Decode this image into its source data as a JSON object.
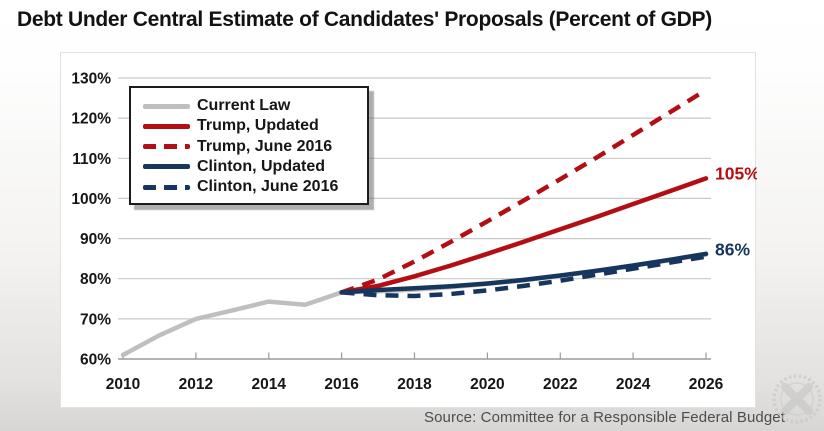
{
  "title": "Debt Under Central Estimate of Candidates' Proposals (Percent of GDP)",
  "source": "Source: Committee for a Responsible Federal Budget",
  "colors": {
    "red": "#b30e14",
    "navy": "#17365d",
    "gray": "#bfbfbf",
    "grid": "#c9c9c9",
    "axis": "#9b9b9b",
    "tick_label": "#161616",
    "source_text": "#4d4d4d"
  },
  "annotations": [
    {
      "text": "105%",
      "color": "red",
      "year": 2026,
      "value": 105
    },
    {
      "text": "86%",
      "color": "navy",
      "year": 2026,
      "value": 86
    }
  ],
  "chart_data": {
    "type": "line",
    "title": "Debt Under Central Estimate of Candidates' Proposals (Percent of GDP)",
    "xlabel": "",
    "ylabel": "Percent of GDP",
    "x": [
      2010,
      2011,
      2012,
      2013,
      2014,
      2015,
      2016,
      2017,
      2018,
      2019,
      2020,
      2021,
      2022,
      2023,
      2024,
      2025,
      2026
    ],
    "x_ticks": [
      2010,
      2012,
      2014,
      2016,
      2018,
      2020,
      2022,
      2024,
      2026
    ],
    "ylim": [
      60,
      130
    ],
    "y_ticks": [
      60,
      70,
      80,
      90,
      100,
      110,
      120,
      130
    ],
    "y_tick_suffix": "%",
    "grid": true,
    "legend_position": "top-left",
    "series": [
      {
        "name": "Current Law",
        "color": "gray",
        "style": "solid",
        "width": 4.5,
        "values": [
          61,
          65.9,
          70,
          72.1,
          74.3,
          73.5,
          76.6,
          76.9,
          77.3,
          77.9,
          78.7,
          79.6,
          80.7,
          81.9,
          83.2,
          84.6,
          86
        ]
      },
      {
        "name": "Trump, Updated",
        "color": "red",
        "style": "solid",
        "width": 4.5,
        "values": [
          null,
          null,
          null,
          null,
          null,
          null,
          76.6,
          78.2,
          80.6,
          83.3,
          86.2,
          89.2,
          92.3,
          95.4,
          98.6,
          101.8,
          105
        ]
      },
      {
        "name": "Trump, June 2016",
        "color": "red",
        "style": "dashed",
        "width": 4.5,
        "values": [
          null,
          null,
          null,
          null,
          null,
          null,
          76.6,
          79.8,
          84.3,
          89.2,
          94.3,
          99.5,
          104.8,
          110.2,
          115.8,
          121.4,
          127
        ]
      },
      {
        "name": "Clinton, Updated",
        "color": "navy",
        "style": "solid",
        "width": 4.5,
        "values": [
          null,
          null,
          null,
          null,
          null,
          null,
          76.6,
          77.2,
          77.6,
          78.1,
          78.8,
          79.7,
          80.8,
          82,
          83.3,
          84.7,
          86.2
        ]
      },
      {
        "name": "Clinton, June 2016",
        "color": "navy",
        "style": "dashed",
        "width": 4.5,
        "values": [
          null,
          null,
          null,
          null,
          null,
          null,
          76.6,
          75.9,
          75.7,
          76.2,
          77.1,
          78.2,
          79.5,
          81,
          82.5,
          84,
          85.5
        ]
      }
    ]
  }
}
